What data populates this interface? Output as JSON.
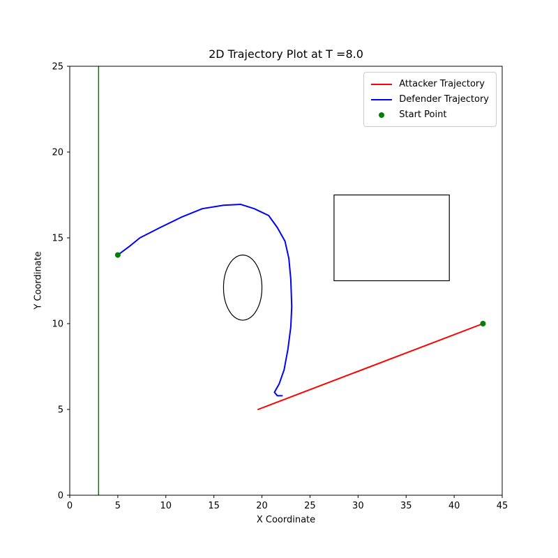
{
  "chart_data": {
    "type": "line",
    "title": "2D Trajectory Plot at T =8.0",
    "xlabel": "X Coordinate",
    "ylabel": "Y Coordinate",
    "xlim": [
      0,
      45
    ],
    "ylim": [
      0,
      25
    ],
    "xticks": [
      0,
      5,
      10,
      15,
      20,
      25,
      30,
      35,
      40,
      45
    ],
    "yticks": [
      0,
      5,
      10,
      15,
      20,
      25
    ],
    "grid": false,
    "legend_position": "upper right",
    "background_color": "#ffffff",
    "axes_color": "#000000",
    "series": [
      {
        "name": "Attacker Trajectory",
        "color": "#ff0000",
        "line_width": 2,
        "points": [
          [
            19.6,
            5.0
          ],
          [
            43.0,
            10.0
          ]
        ]
      },
      {
        "name": "Defender Trajectory",
        "color": "#0000ff",
        "line_width": 2,
        "points": [
          [
            5.0,
            14.0
          ],
          [
            6.2,
            14.5
          ],
          [
            7.3,
            15.0
          ],
          [
            9.4,
            15.6
          ],
          [
            11.6,
            16.2
          ],
          [
            13.8,
            16.7
          ],
          [
            16.0,
            16.9
          ],
          [
            17.8,
            16.95
          ],
          [
            19.2,
            16.7
          ],
          [
            20.7,
            16.3
          ],
          [
            21.6,
            15.6
          ],
          [
            22.4,
            14.8
          ],
          [
            22.8,
            13.8
          ],
          [
            23.0,
            12.6
          ],
          [
            23.1,
            11.0
          ],
          [
            23.0,
            9.8
          ],
          [
            22.7,
            8.5
          ],
          [
            22.3,
            7.3
          ],
          [
            21.8,
            6.5
          ],
          [
            21.3,
            6.0
          ],
          [
            21.6,
            5.8
          ],
          [
            22.1,
            5.8
          ]
        ]
      }
    ],
    "start_points": [
      {
        "x": 5.0,
        "y": 14.0,
        "color": "#008000",
        "radius": 4
      },
      {
        "x": 43.0,
        "y": 10.0,
        "color": "#008000",
        "radius": 4
      }
    ],
    "obstacles": {
      "boundary_line": {
        "x": 3.0,
        "color": "#008000",
        "line_width": 1.5
      },
      "rectangle": {
        "x": 27.5,
        "y": 12.5,
        "width": 12.0,
        "height": 5.0,
        "color": "#000000",
        "line_width": 1.2
      },
      "ellipse": {
        "cx": 18.0,
        "cy": 12.1,
        "rx": 2.0,
        "ry": 1.9,
        "color": "#000000",
        "line_width": 1.2
      }
    },
    "legend_items": [
      {
        "label": "Attacker Trajectory",
        "color": "#ff0000",
        "marker": "line"
      },
      {
        "label": "Defender Trajectory",
        "color": "#0000ff",
        "marker": "line"
      },
      {
        "label": "Start Point",
        "color": "#008000",
        "marker": "dot"
      }
    ]
  }
}
